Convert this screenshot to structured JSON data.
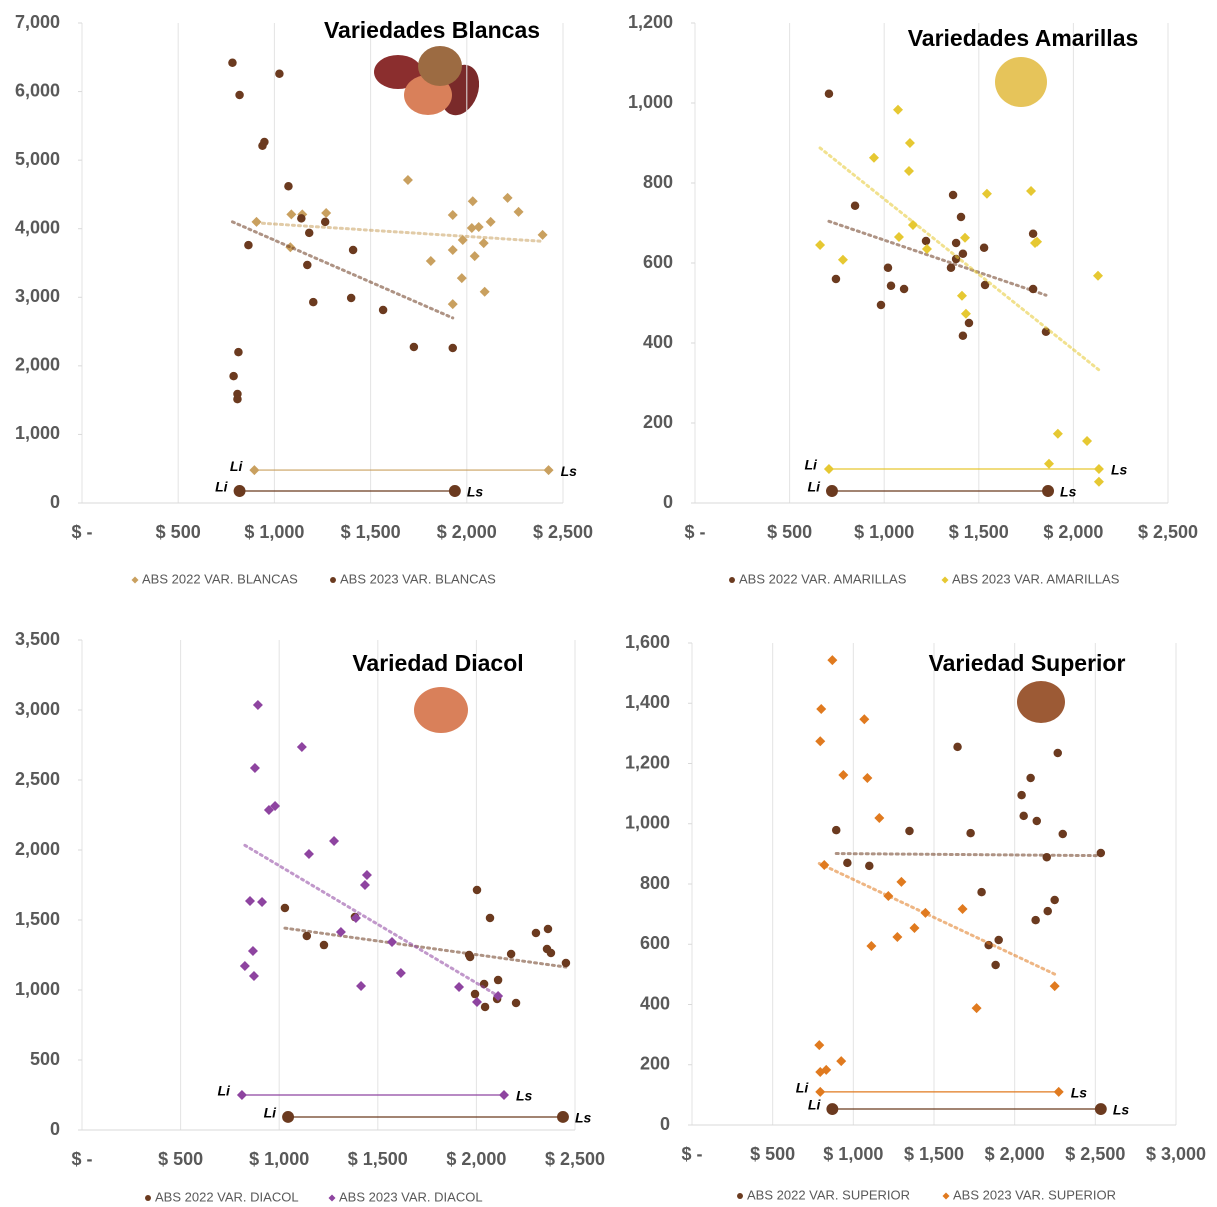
{
  "chart_data": [
    {
      "type": "scatter",
      "title": "Variedades Blancas",
      "trendline": true,
      "range_labels": [
        "Li",
        "Ls"
      ],
      "xlim": [
        0,
        2500
      ],
      "xticks": [
        {
          "value": 0,
          "label": "$ -"
        },
        {
          "value": 500,
          "label": "$ 500"
        },
        {
          "value": 1000,
          "label": "$ 1,000"
        },
        {
          "value": 1500,
          "label": "$ 1,500"
        },
        {
          "value": 2000,
          "label": "$ 2,000"
        },
        {
          "value": 2500,
          "label": "$ 2,500"
        }
      ],
      "ylim": [
        0,
        7000
      ],
      "yticks": [
        0,
        {
          "value": 1000,
          "label": "1,000"
        },
        {
          "value": 2000,
          "label": "2,000"
        },
        {
          "value": 3000,
          "label": "3,000"
        },
        {
          "value": 4000,
          "label": "4,000"
        },
        {
          "value": 5000,
          "label": "5,000"
        },
        {
          "value": 6000,
          "label": "6,000"
        },
        {
          "value": 7000,
          "label": "7,000"
        }
      ],
      "series": [
        {
          "name": "ABS 2022 VAR. BLANCAS",
          "color": "#c9a05f",
          "marker": "diamond",
          "x": [
            907,
            1083,
            1088,
            1145,
            1269,
            1694,
            1813,
            1927,
            1927,
            1927,
            1974,
            1979,
            2031,
            2026,
            2062,
            2041,
            2088,
            2093,
            2124,
            2212,
            2269,
            2394
          ],
          "values": [
            4100,
            3730,
            4210,
            4210,
            4230,
            4710,
            3530,
            4200,
            3690,
            2900,
            3280,
            3835,
            4400,
            4010,
            4025,
            3600,
            3790,
            3080,
            4100,
            4450,
            4245,
            3910
          ],
          "range": {
            "y": 480,
            "x": [
              896,
              2425
            ]
          }
        },
        {
          "name": "ABS 2023 VAR. BLANCAS",
          "color": "#6b3a1f",
          "marker": "circle",
          "x": [
            782,
            819,
            938,
            948,
            1026,
            1073,
            865,
            1140,
            1171,
            1181,
            1202,
            1264,
            1399,
            1409,
            1565,
            1725,
            1927,
            813,
            788,
            808,
            808
          ],
          "values": [
            6420,
            5950,
            5210,
            5265,
            6260,
            4620,
            3760,
            4150,
            3470,
            3940,
            2930,
            4100,
            2990,
            3690,
            2815,
            2275,
            2260,
            2200,
            1850,
            1590,
            1515
          ],
          "range": {
            "y": 175,
            "x": [
              819,
              1938
            ]
          }
        }
      ]
    },
    {
      "type": "scatter",
      "title": "Variedades Amarillas",
      "trendline": true,
      "range_labels": [
        "Li",
        "Ls"
      ],
      "xlim": [
        0,
        2500
      ],
      "xticks": [
        {
          "value": 0,
          "label": "$ -"
        },
        {
          "value": 500,
          "label": "$ 500"
        },
        {
          "value": 1000,
          "label": "$ 1,000"
        },
        {
          "value": 1500,
          "label": "$ 1,500"
        },
        {
          "value": 2000,
          "label": "$ 2,000"
        },
        {
          "value": 2500,
          "label": "$ 2,500"
        }
      ],
      "ylim": [
        0,
        1200
      ],
      "yticks": [
        0,
        200,
        400,
        600,
        800,
        {
          "value": 1000,
          "label": "1,000"
        },
        {
          "value": 1200,
          "label": "1,200"
        }
      ],
      "series": [
        {
          "name": "ABS 2022 VAR. AMARILLAS",
          "color": "#6b3a1f",
          "marker": "circle",
          "x": [
            708,
            846,
            745,
            1020,
            1036,
            1105,
            983,
            1221,
            1364,
            1406,
            1380,
            1416,
            1353,
            1380,
            1528,
            1533,
            1448,
            1416,
            1787,
            1787,
            1855
          ],
          "values": [
            1023,
            743,
            560,
            588,
            543,
            535,
            495,
            655,
            770,
            715,
            650,
            623,
            588,
            610,
            638,
            545,
            450,
            418,
            673,
            535,
            428
          ],
          "range": {
            "y": 30,
            "x": [
              724,
              1866
            ]
          }
        },
        {
          "name": "ABS 2023 VAR. AMARILLAS",
          "color": "#e6c832",
          "marker": "diamond",
          "x": [
            661,
            782,
            946,
            1073,
            1136,
            1131,
            1152,
            1078,
            1226,
            1427,
            1411,
            1432,
            1543,
            1776,
            1797,
            1808,
            2130,
            1918,
            2072,
            1871,
            2135
          ],
          "values": [
            645,
            608,
            863,
            983,
            900,
            830,
            695,
            665,
            635,
            663,
            518,
            473,
            773,
            780,
            650,
            653,
            568,
            173,
            155,
            98,
            53
          ],
          "range": {
            "y": 85,
            "x": [
              708,
              2135
            ]
          }
        }
      ]
    },
    {
      "type": "scatter",
      "title": "Variedad Diacol",
      "trendline": true,
      "range_labels": [
        "Li",
        "Ls"
      ],
      "xlim": [
        0,
        2500
      ],
      "xticks": [
        {
          "value": 0,
          "label": "$ -"
        },
        {
          "value": 500,
          "label": "$ 500"
        },
        {
          "value": 1000,
          "label": "$ 1,000"
        },
        {
          "value": 1500,
          "label": "$ 1,500"
        },
        {
          "value": 2000,
          "label": "$ 2,000"
        },
        {
          "value": 2500,
          "label": "$ 2,500"
        }
      ],
      "ylim": [
        0,
        3500
      ],
      "yticks": [
        0,
        500,
        {
          "value": 1000,
          "label": "1,000"
        },
        {
          "value": 1500,
          "label": "1,500"
        },
        {
          "value": 2000,
          "label": "2,000"
        },
        {
          "value": 2500,
          "label": "2,500"
        },
        {
          "value": 3000,
          "label": "3,000"
        },
        {
          "value": 3500,
          "label": "3,500"
        }
      ],
      "series": [
        {
          "name": "ABS 2022 VAR. DIACOL",
          "color": "#6b3a1f",
          "marker": "circle",
          "x": [
            1029,
            1140,
            1227,
            1384,
            2003,
            2069,
            1968,
            1963,
            1993,
            2039,
            2044,
            2105,
            2110,
            2176,
            2201,
            2302,
            2363,
            2358,
            2378,
            2454
          ],
          "values": [
            1586,
            1386,
            1321,
            1521,
            1714,
            1514,
            1236,
            1250,
            971,
            1043,
            879,
            936,
            1071,
            1257,
            907,
            1407,
            1436,
            1293,
            1264,
            1193
          ],
          "range": {
            "y": 93,
            "x": [
              1045,
              2439
            ]
          }
        },
        {
          "name": "ABS 2023 VAR. DIACOL",
          "color": "#8e44a0",
          "marker": "diamond",
          "x": [
            892,
            877,
            948,
            979,
            1115,
            1151,
            1278,
            852,
            913,
            867,
            826,
            872,
            1313,
            1389,
            1445,
            1435,
            1415,
            1572,
            1617,
            1912,
            2003,
            2110
          ],
          "values": [
            3036,
            2586,
            2286,
            2314,
            2736,
            1971,
            2064,
            1636,
            1629,
            1279,
            1171,
            1100,
            1414,
            1514,
            1821,
            1750,
            1029,
            1343,
            1121,
            1021,
            914,
            957
          ],
          "range": {
            "y": 250,
            "x": [
              811,
              2140
            ]
          }
        }
      ]
    },
    {
      "type": "scatter",
      "title": "Variedad Superior",
      "trendline": true,
      "range_labels": [
        "Li",
        "Ls"
      ],
      "xlim": [
        0,
        3000
      ],
      "xticks": [
        {
          "value": 0,
          "label": "$ -"
        },
        {
          "value": 500,
          "label": "$ 500"
        },
        {
          "value": 1000,
          "label": "$ 1,000"
        },
        {
          "value": 1500,
          "label": "$ 1,500"
        },
        {
          "value": 2000,
          "label": "$ 2,000"
        },
        {
          "value": 2500,
          "label": "$ 2,500"
        },
        {
          "value": 3000,
          "label": "$ 3,000"
        }
      ],
      "ylim": [
        0,
        1600
      ],
      "yticks": [
        0,
        200,
        400,
        600,
        800,
        {
          "value": 1000,
          "label": "1,000"
        },
        {
          "value": 1200,
          "label": "1,200"
        },
        {
          "value": 1400,
          "label": "1,400"
        },
        {
          "value": 1600,
          "label": "1,600"
        }
      ],
      "series": [
        {
          "name": "ABS 2022 VAR. SUPERIOR",
          "color": "#6b3a1f",
          "marker": "circle",
          "x": [
            894,
            963,
            1099,
            1348,
            1646,
            1727,
            1795,
            1839,
            1901,
            1882,
            2043,
            2099,
            2056,
            2137,
            2199,
            2130,
            2205,
            2248,
            2267,
            2298,
            2534
          ],
          "values": [
            979,
            870,
            860,
            976,
            1255,
            969,
            773,
            597,
            614,
            531,
            1095,
            1152,
            1026,
            1009,
            889,
            680,
            710,
            747,
            1235,
            966,
            903
          ],
          "range": {
            "y": 53,
            "x": [
              870,
              2534
            ]
          }
        },
        {
          "name": "ABS 2023 VAR. SUPERIOR",
          "color": "#e07a1f",
          "marker": "diamond",
          "x": [
            870,
            801,
            795,
            938,
            1068,
            1087,
            1161,
            1217,
            1298,
            1273,
            1379,
            1447,
            1677,
            1764,
            1112,
            820,
            789,
            832,
            795,
            925,
            2248
          ],
          "values": [
            1543,
            1381,
            1274,
            1162,
            1347,
            1152,
            1019,
            760,
            807,
            624,
            654,
            704,
            717,
            388,
            594,
            863,
            265,
            183,
            176,
            212,
            461
          ],
          "range": {
            "y": 110,
            "x": [
              795,
              2273
            ]
          }
        }
      ]
    }
  ]
}
